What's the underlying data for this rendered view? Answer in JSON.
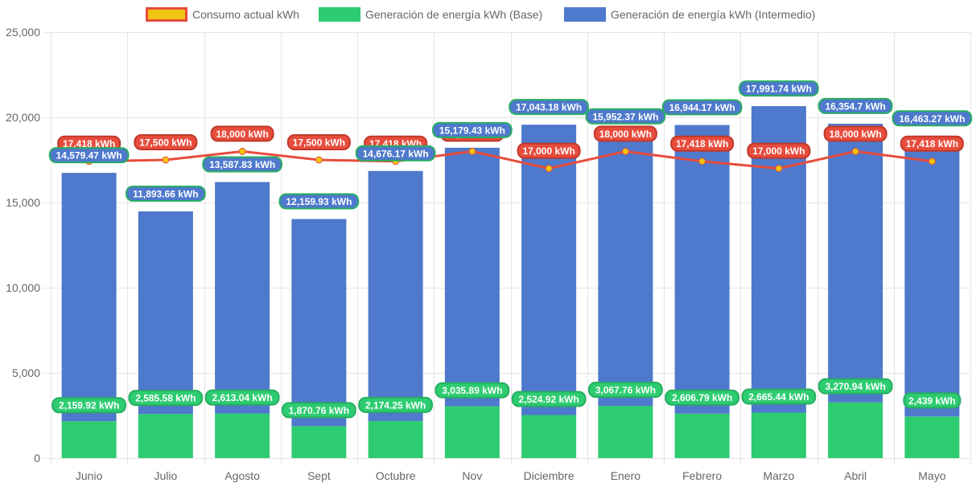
{
  "chart_data": {
    "type": "bar",
    "title": "",
    "xlabel": "",
    "ylabel": "",
    "ylim": [
      0,
      25000
    ],
    "ytick_step": 5000,
    "yticks": [
      "0",
      "5,000",
      "10,000",
      "15,000",
      "20,000",
      "25,000"
    ],
    "grid": true,
    "legend_position": "top-center",
    "stacked_bars": true,
    "categories": [
      "Junio",
      "Julio",
      "Agosto",
      "Sept",
      "Octubre",
      "Nov",
      "Diciembre",
      "Enero",
      "Febrero",
      "Marzo",
      "Abril",
      "Mayo"
    ],
    "series": [
      {
        "name": "Consumo actual kWh",
        "type": "line",
        "color": "#e74c3c",
        "point_color": "#f1c40f",
        "values": [
          17418,
          17500,
          18000,
          17500,
          17418,
          18000,
          17000,
          18000,
          17418,
          17000,
          18000,
          17418
        ],
        "labels": [
          "17,418 kWh",
          "17,500 kWh",
          "18,000 kWh",
          "17,500 kWh",
          "17,418 kWh",
          "18,000 kWh",
          "17,000 kWh",
          "18,000 kWh",
          "17,418 kWh",
          "17,000 kWh",
          "18,000 kWh",
          "17,418 kWh"
        ]
      },
      {
        "name": "Generación de energía kWh (Base)",
        "type": "bar",
        "color": "#2ecc71",
        "values": [
          2159.92,
          2585.58,
          2613.04,
          1870.76,
          2174.25,
          3035.89,
          2524.92,
          3067.76,
          2606.79,
          2665.44,
          3270.94,
          2439
        ],
        "labels": [
          "2,159.92 kWh",
          "2,585.58 kWh",
          "2,613.04 kWh",
          "1,870.76 kWh",
          "2,174.25 kWh",
          "3,035.89 kWh",
          "2,524.92 kWh",
          "3,067.76 kWh",
          "2,606.79 kWh",
          "2,665.44 kWh",
          "3,270.94 kWh",
          "2,439 kWh"
        ]
      },
      {
        "name": "Generación de energía kWh (Intermedio)",
        "type": "bar",
        "color": "#4e79cc",
        "values": [
          14579.47,
          11893.66,
          13587.83,
          12159.93,
          14676.17,
          15179.43,
          17043.18,
          15952.37,
          16944.17,
          17991.74,
          16354.7,
          16463.27
        ],
        "labels": [
          "14,579.47 kWh",
          "11,893.66 kWh",
          "13,587.83 kWh",
          "12,159.93 kWh",
          "14,676.17 kWh",
          "15,179.43 kWh",
          "17,043.18 kWh",
          "15,952.37 kWh",
          "16,944.17 kWh",
          "17,991.74 kWh",
          "16,354.7 kWh",
          "16,463.27 kWh"
        ]
      }
    ]
  },
  "legend": [
    {
      "label": "Consumo actual kWh",
      "fill": "#f1c40f",
      "border": "#e74c3c"
    },
    {
      "label": "Generación de energía kWh (Base)",
      "fill": "#2ecc71",
      "border": "#2ecc71"
    },
    {
      "label": "Generación de energía kWh (Intermedio)",
      "fill": "#4e79cc",
      "border": "#4e79cc"
    }
  ],
  "colors": {
    "grid": "#e5e5e5",
    "axis_text": "#666666",
    "label_border": "#27ae60"
  }
}
